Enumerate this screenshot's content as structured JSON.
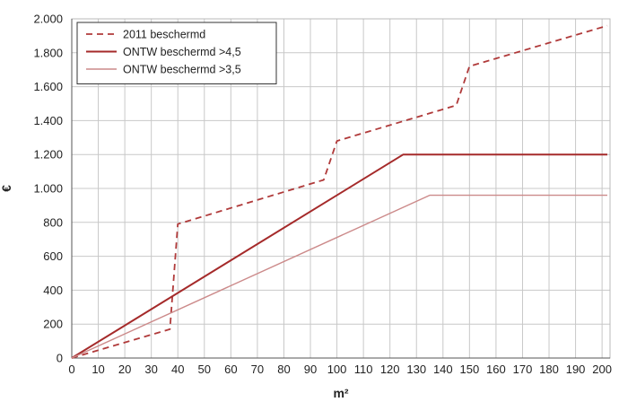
{
  "chart_data": {
    "type": "line",
    "title": "",
    "xlabel": "m²",
    "ylabel": "€",
    "xlim": [
      0,
      203
    ],
    "ylim": [
      0,
      2000
    ],
    "x_ticks": [
      0,
      10,
      20,
      30,
      40,
      50,
      60,
      70,
      80,
      90,
      100,
      110,
      120,
      130,
      140,
      150,
      160,
      170,
      180,
      190,
      200
    ],
    "x_tick_labels": [
      "0",
      "10",
      "20",
      "30",
      "40",
      "50",
      "60",
      "70",
      "80",
      "90",
      "100",
      "110",
      "120",
      "130",
      "140",
      "150",
      "160",
      "170",
      "180",
      "190",
      "200"
    ],
    "y_ticks": [
      0,
      200,
      400,
      600,
      800,
      1000,
      1200,
      1400,
      1600,
      1800,
      2000
    ],
    "y_tick_labels": [
      "0",
      "200",
      "400",
      "600",
      "800",
      "1.000",
      "1.200",
      "1.400",
      "1.600",
      "1.800",
      "2.000"
    ],
    "grid": true,
    "legend_position": "top-left",
    "series": [
      {
        "name": "2011 beschermd",
        "color": "#b03a3a",
        "style": "dashed",
        "x": [
          0,
          37,
          40,
          95,
          100,
          145,
          150,
          202
        ],
        "y": [
          0,
          170,
          790,
          1050,
          1280,
          1490,
          1720,
          1960
        ]
      },
      {
        "name": "ONTW beschermd >4,5",
        "color": "#a52a2a",
        "style": "solid",
        "x": [
          0,
          125,
          202
        ],
        "y": [
          0,
          1200,
          1200
        ]
      },
      {
        "name": "ONTW beschermd >3,5",
        "color": "#cc8a8a",
        "style": "solid",
        "x": [
          0,
          135,
          202
        ],
        "y": [
          0,
          960,
          960
        ]
      }
    ]
  }
}
